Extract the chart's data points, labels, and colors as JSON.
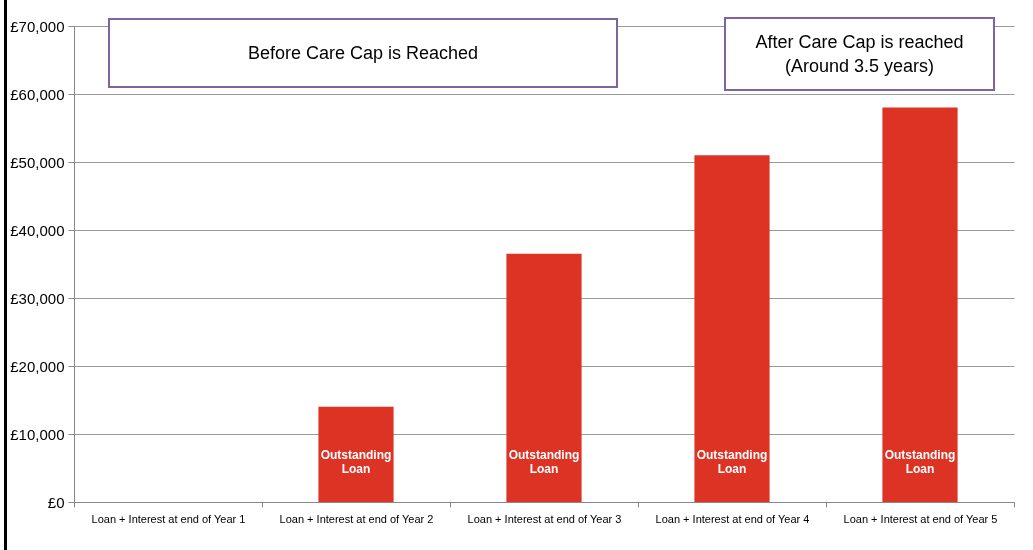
{
  "chart_data": {
    "type": "bar",
    "categories": [
      "Loan + Interest at end of Year 1",
      "Loan + Interest at end of Year 2",
      "Loan + Interest at end of Year 3",
      "Loan + Interest at end of Year 4",
      "Loan + Interest at end of Year 5"
    ],
    "series": [
      {
        "name": "Outstanding\nLoan",
        "color": "#dc3325",
        "values": [
          0,
          14000,
          36500,
          51000,
          58000
        ]
      }
    ],
    "ylim": [
      0,
      70000
    ],
    "yticks": [
      {
        "value": 0,
        "label": "£0"
      },
      {
        "value": 10000,
        "label": "£10,000"
      },
      {
        "value": 20000,
        "label": "£20,000"
      },
      {
        "value": 30000,
        "label": "£30,000"
      },
      {
        "value": 40000,
        "label": "£40,000"
      },
      {
        "value": 50000,
        "label": "£50,000"
      },
      {
        "value": 60000,
        "label": "£60,000"
      },
      {
        "value": 70000,
        "label": "£70,000"
      }
    ],
    "grid": "y",
    "legend": false,
    "annotations": [
      "Before Care Cap is Reached",
      "After Care Cap is reached\n(Around 3.5 years)"
    ]
  }
}
